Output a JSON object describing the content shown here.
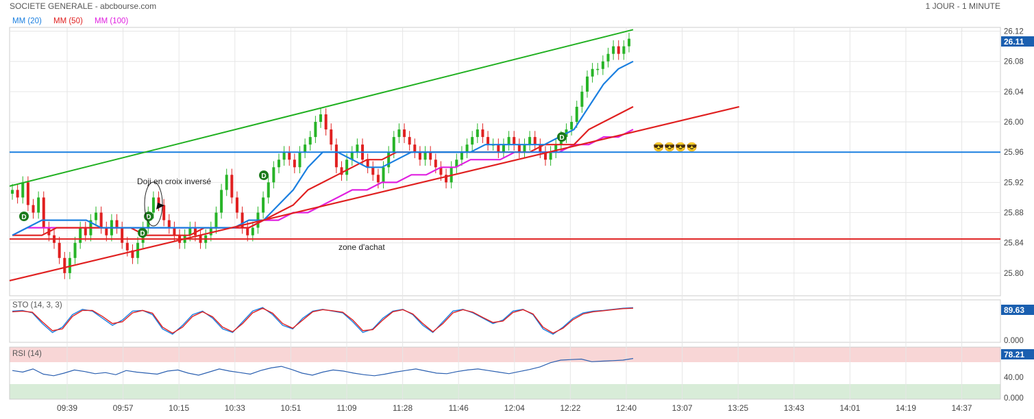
{
  "header": {
    "title": "SOCIETE GENERALE - abcbourse.com",
    "timeframe": "1 JOUR - 1 MINUTE"
  },
  "legend": [
    {
      "label": "MM (20)",
      "color": "#1a7fe0"
    },
    {
      "label": "MM (50)",
      "color": "#e02020"
    },
    {
      "label": "MM (100)",
      "color": "#e020e0"
    }
  ],
  "annotations": {
    "doji": "Doji en croix inversé",
    "zone": "zone d'achat",
    "emoji": "😎😎😎😎"
  },
  "current_price": "26.11",
  "sto": {
    "label": "STO (14, 3, 3)",
    "value": "89.63",
    "axis": [
      "0.000"
    ]
  },
  "rsi": {
    "label": "RSI (14)",
    "value": "78.21",
    "axis": [
      "40.00",
      "0.000"
    ]
  },
  "colors": {
    "up": "#28b428",
    "down": "#e02020",
    "ma20": "#1a7fe0",
    "ma50": "#e02020",
    "ma100": "#e020e0",
    "green_trend": "#20b020",
    "red_trend": "#e02020",
    "support": "#1a7fe0",
    "grid": "#e6e6e6",
    "rsi_zone_high": "#f8d6d6",
    "rsi_zone_low": "#d8ecd8"
  },
  "chart_data": [
    {
      "type": "line",
      "panel": "price",
      "x_ticks": [
        "09:39",
        "09:57",
        "10:15",
        "10:33",
        "10:51",
        "11:09",
        "11:28",
        "11:46",
        "12:04",
        "12:22",
        "12:40",
        "13:07",
        "13:25",
        "13:43",
        "14:01",
        "14:19",
        "14:37"
      ],
      "y_ticks": [
        25.8,
        25.84,
        25.88,
        25.92,
        25.96,
        26.0,
        26.04,
        26.08,
        26.12
      ],
      "ylim": [
        25.77,
        26.125
      ],
      "candles_close": [
        25.91,
        25.9,
        25.92,
        25.89,
        25.88,
        25.9,
        25.86,
        25.85,
        25.84,
        25.82,
        25.8,
        25.82,
        25.84,
        25.86,
        25.85,
        25.87,
        25.88,
        25.86,
        25.85,
        25.87,
        25.86,
        25.84,
        25.83,
        25.82,
        25.84,
        25.86,
        25.88,
        25.9,
        25.89,
        25.87,
        25.86,
        25.85,
        25.84,
        25.85,
        25.86,
        25.85,
        25.84,
        25.85,
        25.86,
        25.88,
        25.91,
        25.93,
        25.9,
        25.88,
        25.86,
        25.85,
        25.86,
        25.88,
        25.9,
        25.92,
        25.94,
        25.95,
        25.96,
        25.95,
        25.94,
        25.96,
        25.97,
        25.98,
        26.0,
        26.01,
        25.99,
        25.97,
        25.94,
        25.93,
        25.95,
        25.96,
        25.97,
        25.95,
        25.94,
        25.93,
        25.92,
        25.94,
        25.96,
        25.98,
        25.99,
        25.98,
        25.97,
        25.96,
        25.95,
        25.96,
        25.95,
        25.94,
        25.93,
        25.92,
        25.94,
        25.95,
        25.96,
        25.97,
        25.98,
        25.99,
        25.98,
        25.97,
        25.97,
        25.96,
        25.97,
        25.98,
        25.97,
        25.96,
        25.97,
        25.98,
        25.97,
        25.96,
        25.95,
        25.96,
        25.97,
        25.98,
        25.99,
        26.0,
        26.02,
        26.04,
        26.06,
        26.07,
        26.07,
        26.08,
        26.09,
        26.1,
        26.09,
        26.1,
        26.11
      ],
      "ma20": [
        25.85,
        25.86,
        25.87,
        25.87,
        25.87,
        25.87,
        25.86,
        25.86,
        25.86,
        25.86,
        25.86,
        25.86,
        25.86,
        25.86,
        25.86,
        25.86,
        25.87,
        25.87,
        25.89,
        25.91,
        25.94,
        25.96,
        25.96,
        25.95,
        25.94,
        25.94,
        25.95,
        25.96,
        25.96,
        25.96,
        25.96,
        25.96,
        25.97,
        25.97,
        25.97,
        25.97,
        25.97,
        25.98,
        25.99,
        26.02,
        26.05,
        26.07,
        26.08
      ],
      "ma50": [
        25.85,
        25.85,
        25.85,
        25.86,
        25.86,
        25.86,
        25.86,
        25.86,
        25.86,
        25.85,
        25.85,
        25.85,
        25.85,
        25.86,
        25.86,
        25.86,
        25.86,
        25.87,
        25.88,
        25.89,
        25.91,
        25.92,
        25.93,
        25.94,
        25.95,
        25.95,
        25.96,
        25.96,
        25.96,
        25.96,
        25.96,
        25.96,
        25.96,
        25.96,
        25.96,
        25.96,
        25.97,
        25.97,
        25.97,
        25.99,
        26.0,
        26.01,
        26.02
      ],
      "ma100": [
        25.85,
        25.86,
        25.86,
        25.86,
        25.86,
        25.86,
        25.86,
        25.86,
        25.86,
        25.86,
        25.86,
        25.86,
        25.86,
        25.86,
        25.86,
        25.86,
        25.86,
        25.87,
        25.87,
        25.88,
        25.88,
        25.89,
        25.9,
        25.91,
        25.91,
        25.92,
        25.92,
        25.93,
        25.93,
        25.94,
        25.94,
        25.95,
        25.95,
        25.95,
        25.96,
        25.96,
        25.96,
        25.96,
        25.97,
        25.97,
        25.98,
        25.98,
        25.99
      ],
      "support_level": 25.96,
      "zone_level": 25.845,
      "green_trendline": [
        [
          0,
          25.915
        ],
        [
          1,
          26.122
        ]
      ],
      "red_trendline": [
        [
          0,
          25.79
        ],
        [
          1.17,
          26.02
        ]
      ]
    },
    {
      "type": "line",
      "panel": "stochastic",
      "ylim": [
        0,
        100
      ],
      "series": [
        {
          "values": [
            80,
            82,
            75,
            45,
            20,
            35,
            70,
            85,
            80,
            60,
            40,
            55,
            80,
            82,
            70,
            30,
            15,
            40,
            70,
            80,
            60,
            30,
            20,
            50,
            80,
            90,
            70,
            40,
            30,
            60,
            80,
            85,
            80,
            75,
            50,
            20,
            30,
            60,
            80,
            85,
            70,
            40,
            20,
            50,
            80,
            85,
            75,
            60,
            45,
            55,
            80,
            85,
            70,
            30,
            15,
            35,
            60,
            75,
            80,
            82,
            85,
            88,
            89.63
          ]
        },
        {
          "values": [
            78,
            80,
            77,
            50,
            25,
            30,
            65,
            82,
            82,
            65,
            45,
            50,
            75,
            82,
            74,
            35,
            18,
            35,
            65,
            78,
            64,
            35,
            22,
            45,
            75,
            88,
            74,
            45,
            32,
            55,
            78,
            84,
            81,
            77,
            55,
            25,
            28,
            55,
            78,
            84,
            72,
            45,
            22,
            45,
            75,
            84,
            77,
            62,
            48,
            52,
            76,
            84,
            72,
            35,
            18,
            32,
            56,
            72,
            78,
            81,
            84,
            87,
            88
          ]
        }
      ]
    },
    {
      "type": "line",
      "panel": "rsi",
      "ylim": [
        0,
        100
      ],
      "series": [
        {
          "values": [
            55,
            52,
            58,
            48,
            45,
            50,
            56,
            53,
            49,
            51,
            47,
            55,
            52,
            50,
            48,
            54,
            56,
            50,
            46,
            52,
            58,
            54,
            51,
            48,
            55,
            60,
            63,
            57,
            50,
            46,
            52,
            56,
            54,
            50,
            47,
            45,
            48,
            52,
            55,
            58,
            54,
            50,
            49,
            53,
            56,
            58,
            55,
            52,
            49,
            53,
            57,
            62,
            70,
            75,
            76,
            77,
            72,
            73,
            74,
            75,
            78.21
          ]
        }
      ]
    }
  ]
}
